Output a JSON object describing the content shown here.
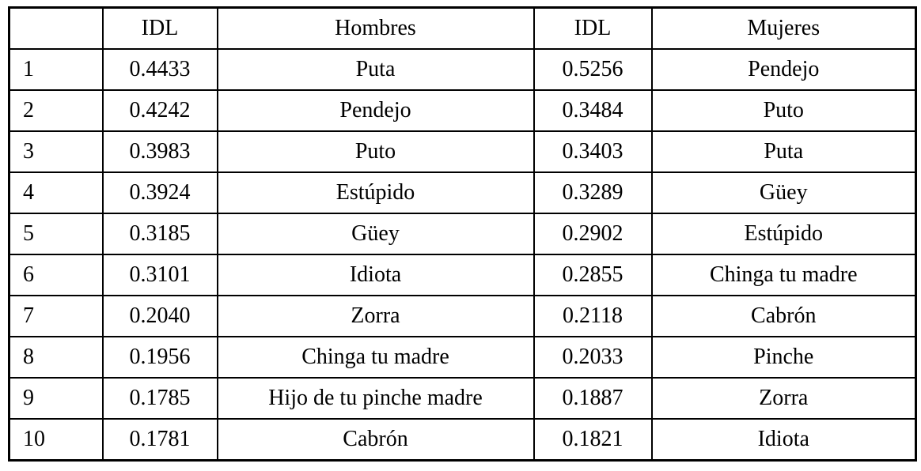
{
  "chart_data": {
    "type": "table",
    "columns": [
      "",
      "IDL",
      "Hombres",
      "IDL",
      "Mujeres"
    ],
    "rows": [
      [
        "1",
        "0.4433",
        "Puta",
        "0.5256",
        "Pendejo"
      ],
      [
        "2",
        "0.4242",
        "Pendejo",
        "0.3484",
        "Puto"
      ],
      [
        "3",
        "0.3983",
        "Puto",
        "0.3403",
        "Puta"
      ],
      [
        "4",
        "0.3924",
        "Estúpido",
        "0.3289",
        "Güey"
      ],
      [
        "5",
        "0.3185",
        "Güey",
        "0.2902",
        "Estúpido"
      ],
      [
        "6",
        "0.3101",
        "Idiota",
        "0.2855",
        "Chinga tu madre"
      ],
      [
        "7",
        "0.2040",
        "Zorra",
        "0.2118",
        "Cabrón"
      ],
      [
        "8",
        "0.1956",
        "Chinga tu madre",
        "0.2033",
        "Pinche"
      ],
      [
        "9",
        "0.1785",
        "Hijo de tu pinche madre",
        "0.1887",
        "Zorra"
      ],
      [
        "10",
        "0.1781",
        "Cabrón",
        "0.1821",
        "Idiota"
      ]
    ]
  },
  "style": {
    "border_color": "#000000",
    "text_color": "#000000",
    "background": "#ffffff"
  }
}
